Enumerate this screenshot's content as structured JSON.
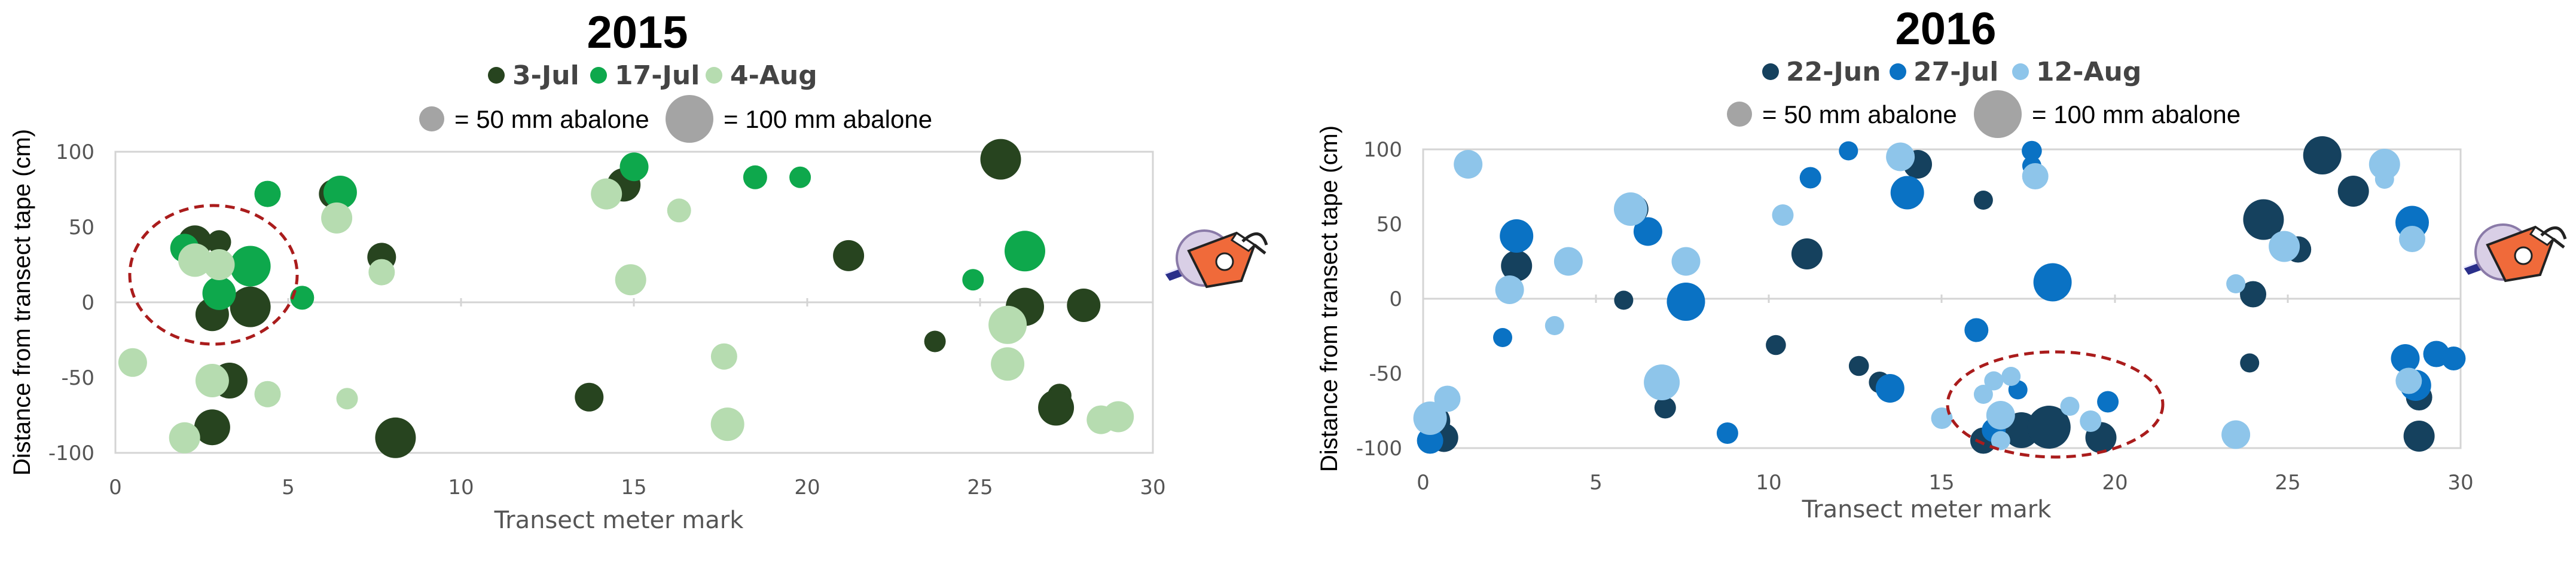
{
  "charts": [
    {
      "title": "2015",
      "legend_series": [
        "3-Jul",
        "17-Jul",
        "4-Aug"
      ],
      "size_legend": [
        "= 50 mm abalone",
        "= 100 mm abalone"
      ],
      "xlabel": "Transect meter mark",
      "ylabel": "Distance from transect tape (cm)",
      "xticks": [
        "0",
        "5",
        "10",
        "15",
        "20",
        "25",
        "30"
      ],
      "yticks": [
        "100",
        "50",
        "0",
        "-50",
        "-100"
      ]
    },
    {
      "title": "2016",
      "legend_series": [
        "22-Jun",
        "27-Jul",
        "12-Aug"
      ],
      "size_legend": [
        "= 50 mm abalone",
        "= 100 mm abalone"
      ],
      "xlabel": "Transect meter mark",
      "ylabel": "Distance from transect tape (cm)",
      "xticks": [
        "0",
        "5",
        "10",
        "15",
        "20",
        "25",
        "30"
      ],
      "yticks": [
        "100",
        "50",
        "0",
        "-50",
        "-100"
      ]
    }
  ],
  "chart_data": [
    {
      "type": "scatter",
      "title": "2015",
      "xlabel": "Transect meter mark",
      "ylabel": "Distance from transect tape (cm)",
      "xlim": [
        0,
        30
      ],
      "ylim": [
        -100,
        100
      ],
      "legend": "top-center",
      "grid": false,
      "bubble_size_reference_mm": [
        50,
        100
      ],
      "highlight": "dashed ellipse around cluster near x=2-5, y=-20 to 60",
      "series": [
        {
          "name": "3-Jul",
          "color": "#27441f",
          "points": [
            {
              "x": 2.3,
              "y": 40,
              "size": 70
            },
            {
              "x": 2.8,
              "y": -8,
              "size": 70
            },
            {
              "x": 3.0,
              "y": 40,
              "size": 50
            },
            {
              "x": 3.3,
              "y": -52,
              "size": 75
            },
            {
              "x": 3.9,
              "y": -3,
              "size": 85
            },
            {
              "x": 6.3,
              "y": 72,
              "size": 60
            },
            {
              "x": 7.7,
              "y": 30,
              "size": 60
            },
            {
              "x": 8.1,
              "y": -90,
              "size": 85
            },
            {
              "x": 2.8,
              "y": -83,
              "size": 75
            },
            {
              "x": 13.7,
              "y": -63,
              "size": 60
            },
            {
              "x": 14.7,
              "y": 78,
              "size": 70
            },
            {
              "x": 21.2,
              "y": 31,
              "size": 65
            },
            {
              "x": 23.7,
              "y": -26,
              "size": 45
            },
            {
              "x": 25.6,
              "y": 95,
              "size": 85
            },
            {
              "x": 26.3,
              "y": -3,
              "size": 80
            },
            {
              "x": 27.3,
              "y": -62,
              "size": 50
            },
            {
              "x": 27.2,
              "y": -70,
              "size": 75
            },
            {
              "x": 28.0,
              "y": -2,
              "size": 70
            }
          ]
        },
        {
          "name": "17-Jul",
          "color": "#0ea84c",
          "points": [
            {
              "x": 2.0,
              "y": 36,
              "size": 60
            },
            {
              "x": 3.0,
              "y": 6,
              "size": 70
            },
            {
              "x": 3.9,
              "y": 24,
              "size": 85
            },
            {
              "x": 4.4,
              "y": 72,
              "size": 55
            },
            {
              "x": 5.4,
              "y": 3,
              "size": 50
            },
            {
              "x": 6.5,
              "y": 73,
              "size": 70
            },
            {
              "x": 15.0,
              "y": 90,
              "size": 60
            },
            {
              "x": 18.5,
              "y": 83,
              "size": 50
            },
            {
              "x": 19.8,
              "y": 83,
              "size": 45
            },
            {
              "x": 24.8,
              "y": 15,
              "size": 45
            },
            {
              "x": 26.3,
              "y": 34,
              "size": 85
            }
          ]
        },
        {
          "name": "4-Aug",
          "color": "#b6dcb0",
          "points": [
            {
              "x": 0.5,
              "y": -40,
              "size": 60
            },
            {
              "x": 2.0,
              "y": -90,
              "size": 65
            },
            {
              "x": 2.3,
              "y": 28,
              "size": 70
            },
            {
              "x": 2.8,
              "y": -52,
              "size": 70
            },
            {
              "x": 3.0,
              "y": 25,
              "size": 65
            },
            {
              "x": 4.4,
              "y": -61,
              "size": 55
            },
            {
              "x": 6.4,
              "y": 56,
              "size": 65
            },
            {
              "x": 6.7,
              "y": -64,
              "size": 45
            },
            {
              "x": 7.7,
              "y": 20,
              "size": 55
            },
            {
              "x": 14.2,
              "y": 72,
              "size": 65
            },
            {
              "x": 14.9,
              "y": 15,
              "size": 65
            },
            {
              "x": 16.3,
              "y": 61,
              "size": 50
            },
            {
              "x": 17.6,
              "y": -36,
              "size": 55
            },
            {
              "x": 17.7,
              "y": -81,
              "size": 70
            },
            {
              "x": 25.8,
              "y": -15,
              "size": 80
            },
            {
              "x": 25.8,
              "y": -41,
              "size": 70
            },
            {
              "x": 28.5,
              "y": -78,
              "size": 60
            },
            {
              "x": 29.0,
              "y": -76,
              "size": 65
            }
          ]
        }
      ]
    },
    {
      "type": "scatter",
      "title": "2016",
      "xlabel": "Transect meter mark",
      "ylabel": "Distance from transect tape (cm)",
      "xlim": [
        0,
        30
      ],
      "ylim": [
        -100,
        100
      ],
      "legend": "top-center",
      "grid": false,
      "bubble_size_reference_mm": [
        50,
        100
      ],
      "highlight": "dashed ellipse around cluster near x=15-20, y=-35 to -100",
      "series": [
        {
          "name": "22-Jun",
          "color": "#15415e",
          "points": [
            {
              "x": 0.3,
              "y": -82,
              "size": 70
            },
            {
              "x": 0.6,
              "y": -93,
              "size": 60
            },
            {
              "x": 2.7,
              "y": 22,
              "size": 65
            },
            {
              "x": 5.8,
              "y": -1,
              "size": 40
            },
            {
              "x": 6.1,
              "y": 60,
              "size": 60
            },
            {
              "x": 7.0,
              "y": -73,
              "size": 45
            },
            {
              "x": 10.2,
              "y": -31,
              "size": 42
            },
            {
              "x": 11.1,
              "y": 30,
              "size": 65
            },
            {
              "x": 12.6,
              "y": -45,
              "size": 42
            },
            {
              "x": 13.2,
              "y": -56,
              "size": 45
            },
            {
              "x": 14.3,
              "y": 90,
              "size": 60
            },
            {
              "x": 16.2,
              "y": 66,
              "size": 40
            },
            {
              "x": 16.2,
              "y": -95,
              "size": 55
            },
            {
              "x": 17.3,
              "y": -88,
              "size": 75
            },
            {
              "x": 18.1,
              "y": -86,
              "size": 90
            },
            {
              "x": 19.6,
              "y": -93,
              "size": 65
            },
            {
              "x": 23.9,
              "y": -43,
              "size": 40
            },
            {
              "x": 24.0,
              "y": 3,
              "size": 55
            },
            {
              "x": 24.3,
              "y": 53,
              "size": 85
            },
            {
              "x": 25.3,
              "y": 33,
              "size": 55
            },
            {
              "x": 26.0,
              "y": 96,
              "size": 80
            },
            {
              "x": 26.9,
              "y": 72,
              "size": 65
            },
            {
              "x": 28.8,
              "y": -66,
              "size": 55
            },
            {
              "x": 28.8,
              "y": -92,
              "size": 65
            }
          ]
        },
        {
          "name": "27-Jul",
          "color": "#0a72c4",
          "points": [
            {
              "x": 0.2,
              "y": -95,
              "size": 55
            },
            {
              "x": 2.3,
              "y": -26,
              "size": 40
            },
            {
              "x": 2.7,
              "y": 42,
              "size": 70
            },
            {
              "x": 6.5,
              "y": 45,
              "size": 60
            },
            {
              "x": 7.6,
              "y": -2,
              "size": 80
            },
            {
              "x": 8.8,
              "y": -90,
              "size": 45
            },
            {
              "x": 11.2,
              "y": 81,
              "size": 45
            },
            {
              "x": 12.3,
              "y": 99,
              "size": 40
            },
            {
              "x": 13.5,
              "y": -60,
              "size": 60
            },
            {
              "x": 14.0,
              "y": 71,
              "size": 70
            },
            {
              "x": 16.0,
              "y": -21,
              "size": 50
            },
            {
              "x": 16.5,
              "y": -88,
              "size": 50
            },
            {
              "x": 17.2,
              "y": -61,
              "size": 40
            },
            {
              "x": 17.6,
              "y": 99,
              "size": 42
            },
            {
              "x": 17.6,
              "y": 89,
              "size": 40
            },
            {
              "x": 18.2,
              "y": 11,
              "size": 80
            },
            {
              "x": 19.8,
              "y": -69,
              "size": 45
            },
            {
              "x": 28.4,
              "y": -40,
              "size": 60
            },
            {
              "x": 28.6,
              "y": 51,
              "size": 70
            },
            {
              "x": 28.7,
              "y": -58,
              "size": 65
            },
            {
              "x": 29.3,
              "y": -37,
              "size": 55
            },
            {
              "x": 29.8,
              "y": -40,
              "size": 50
            }
          ]
        },
        {
          "name": "12-Aug",
          "color": "#8ec5ea",
          "points": [
            {
              "x": 0.2,
              "y": -80,
              "size": 70
            },
            {
              "x": 0.7,
              "y": -67,
              "size": 55
            },
            {
              "x": 1.3,
              "y": 90,
              "size": 60
            },
            {
              "x": 2.5,
              "y": 6,
              "size": 60
            },
            {
              "x": 3.8,
              "y": -18,
              "size": 40
            },
            {
              "x": 4.2,
              "y": 25,
              "size": 60
            },
            {
              "x": 6.0,
              "y": 60,
              "size": 70
            },
            {
              "x": 6.9,
              "y": -56,
              "size": 75
            },
            {
              "x": 7.6,
              "y": 25,
              "size": 60
            },
            {
              "x": 10.4,
              "y": 56,
              "size": 45
            },
            {
              "x": 13.8,
              "y": 95,
              "size": 60
            },
            {
              "x": 15.0,
              "y": -80,
              "size": 45
            },
            {
              "x": 16.2,
              "y": -64,
              "size": 40
            },
            {
              "x": 16.5,
              "y": -55,
              "size": 40
            },
            {
              "x": 16.7,
              "y": -78,
              "size": 60
            },
            {
              "x": 17.0,
              "y": -52,
              "size": 40
            },
            {
              "x": 16.7,
              "y": -95,
              "size": 40
            },
            {
              "x": 17.7,
              "y": 82,
              "size": 55
            },
            {
              "x": 18.7,
              "y": -72,
              "size": 40
            },
            {
              "x": 19.3,
              "y": -82,
              "size": 45
            },
            {
              "x": 23.5,
              "y": -91,
              "size": 60
            },
            {
              "x": 23.5,
              "y": 10,
              "size": 40
            },
            {
              "x": 24.9,
              "y": 35,
              "size": 65
            },
            {
              "x": 27.8,
              "y": 80,
              "size": 40
            },
            {
              "x": 27.8,
              "y": 90,
              "size": 65
            },
            {
              "x": 28.5,
              "y": -55,
              "size": 55
            },
            {
              "x": 28.6,
              "y": 40,
              "size": 55
            }
          ]
        }
      ]
    }
  ]
}
